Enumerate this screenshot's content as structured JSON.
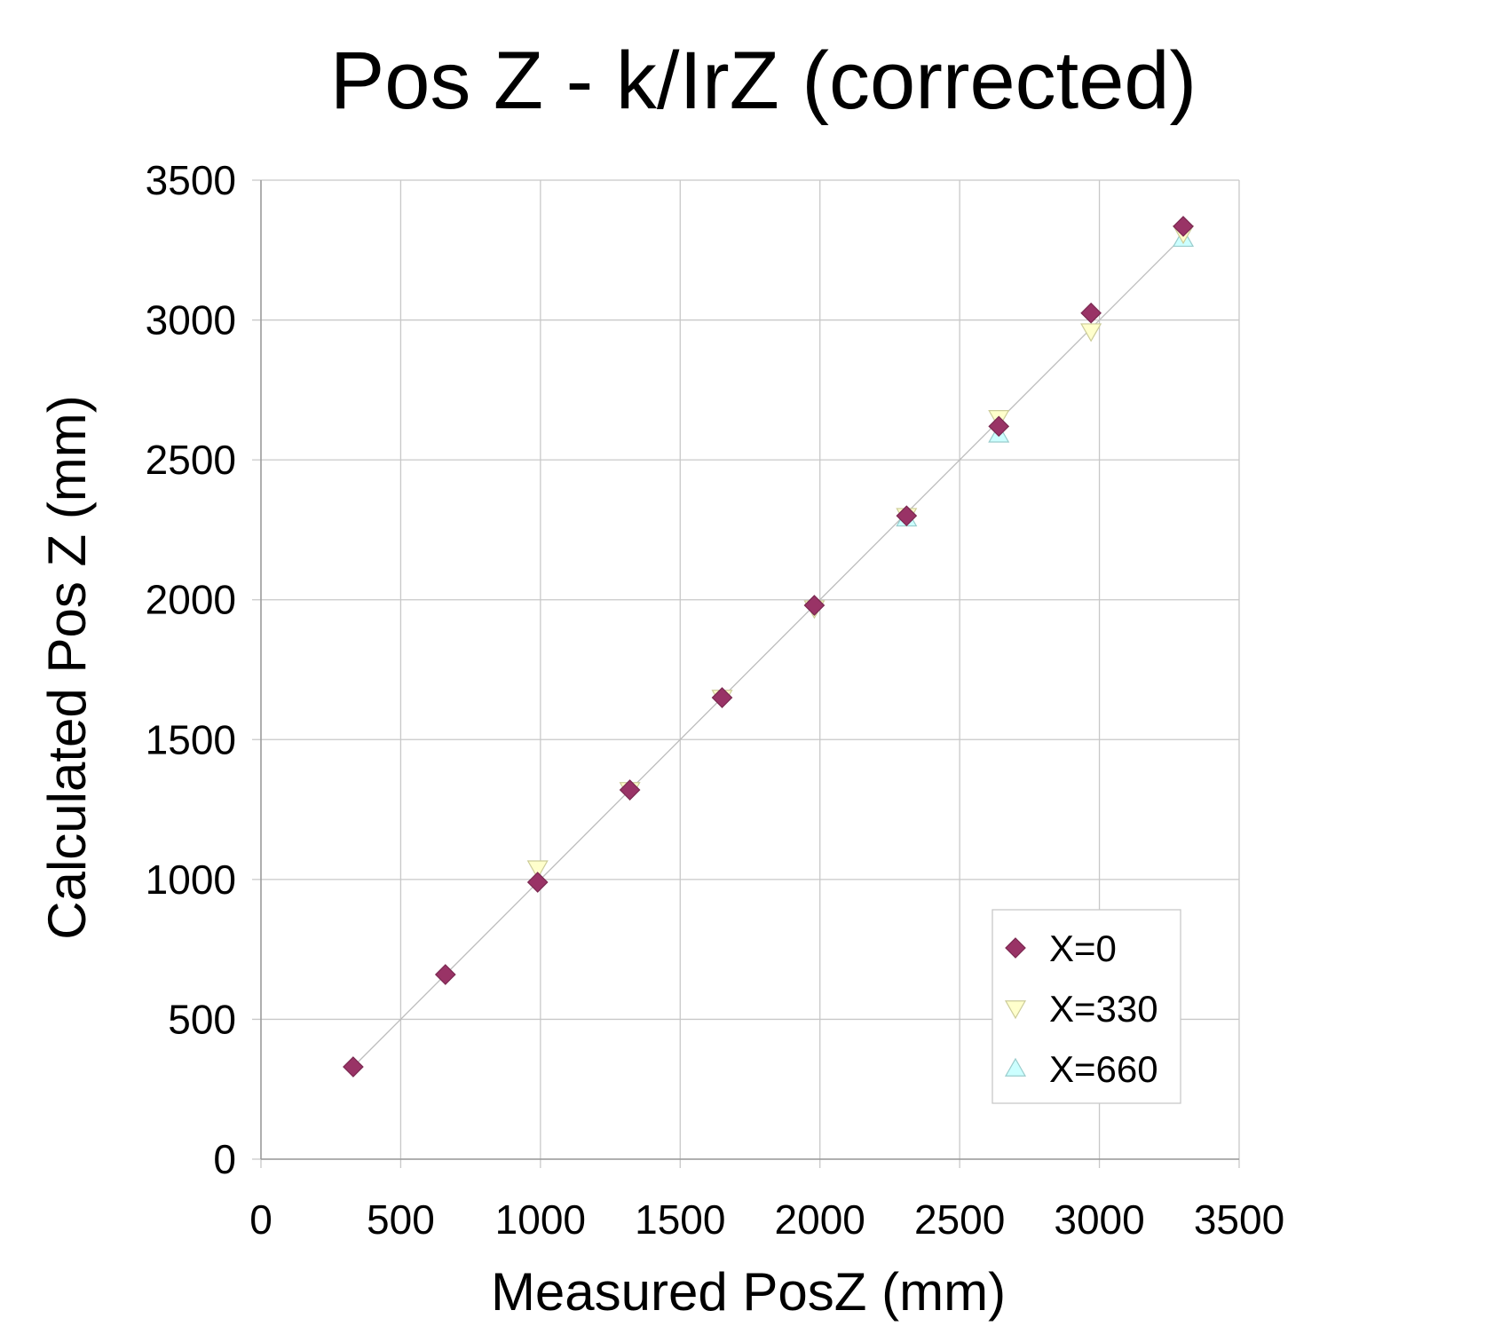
{
  "chart_data": {
    "type": "scatter",
    "title": "Pos Z - k/IrZ (corrected)",
    "xlabel": "Measured PosZ (mm)",
    "ylabel": "Calculated Pos Z (mm)",
    "xlim": [
      0,
      3500
    ],
    "ylim": [
      0,
      3500
    ],
    "xticks": [
      "0",
      "500",
      "1000",
      "1500",
      "2000",
      "2500",
      "3000",
      "3500"
    ],
    "yticks": [
      "0",
      "500",
      "1000",
      "1500",
      "2000",
      "2500",
      "3000",
      "3500"
    ],
    "grid": true,
    "legend_position": "bottom-right",
    "reference_line": {
      "from": [
        330,
        330
      ],
      "to": [
        3300,
        3300
      ],
      "color": "#bdbdbd"
    },
    "series": [
      {
        "name": "X=660",
        "marker": "triangle-up",
        "color": "#ccffff",
        "stroke": "#99cccc",
        "x": [
          2310,
          2640,
          3300
        ],
        "y": [
          2290,
          2590,
          3290
        ]
      },
      {
        "name": "X=330",
        "marker": "triangle-down",
        "color": "#ffffcc",
        "stroke": "#cccc99",
        "x": [
          990,
          1320,
          1650,
          1980,
          2310,
          2640,
          2970,
          3300
        ],
        "y": [
          1040,
          1320,
          1650,
          1970,
          2300,
          2650,
          2960,
          3310
        ]
      },
      {
        "name": "X=0",
        "marker": "diamond",
        "color": "#993366",
        "stroke": "#7a2850",
        "x": [
          330,
          660,
          990,
          1320,
          1650,
          1980,
          2310,
          2640,
          2970,
          3300
        ],
        "y": [
          330,
          660,
          990,
          1320,
          1650,
          1980,
          2300,
          2620,
          3025,
          3335
        ]
      }
    ],
    "legend_order": [
      "X=0",
      "X=330",
      "X=660"
    ]
  }
}
